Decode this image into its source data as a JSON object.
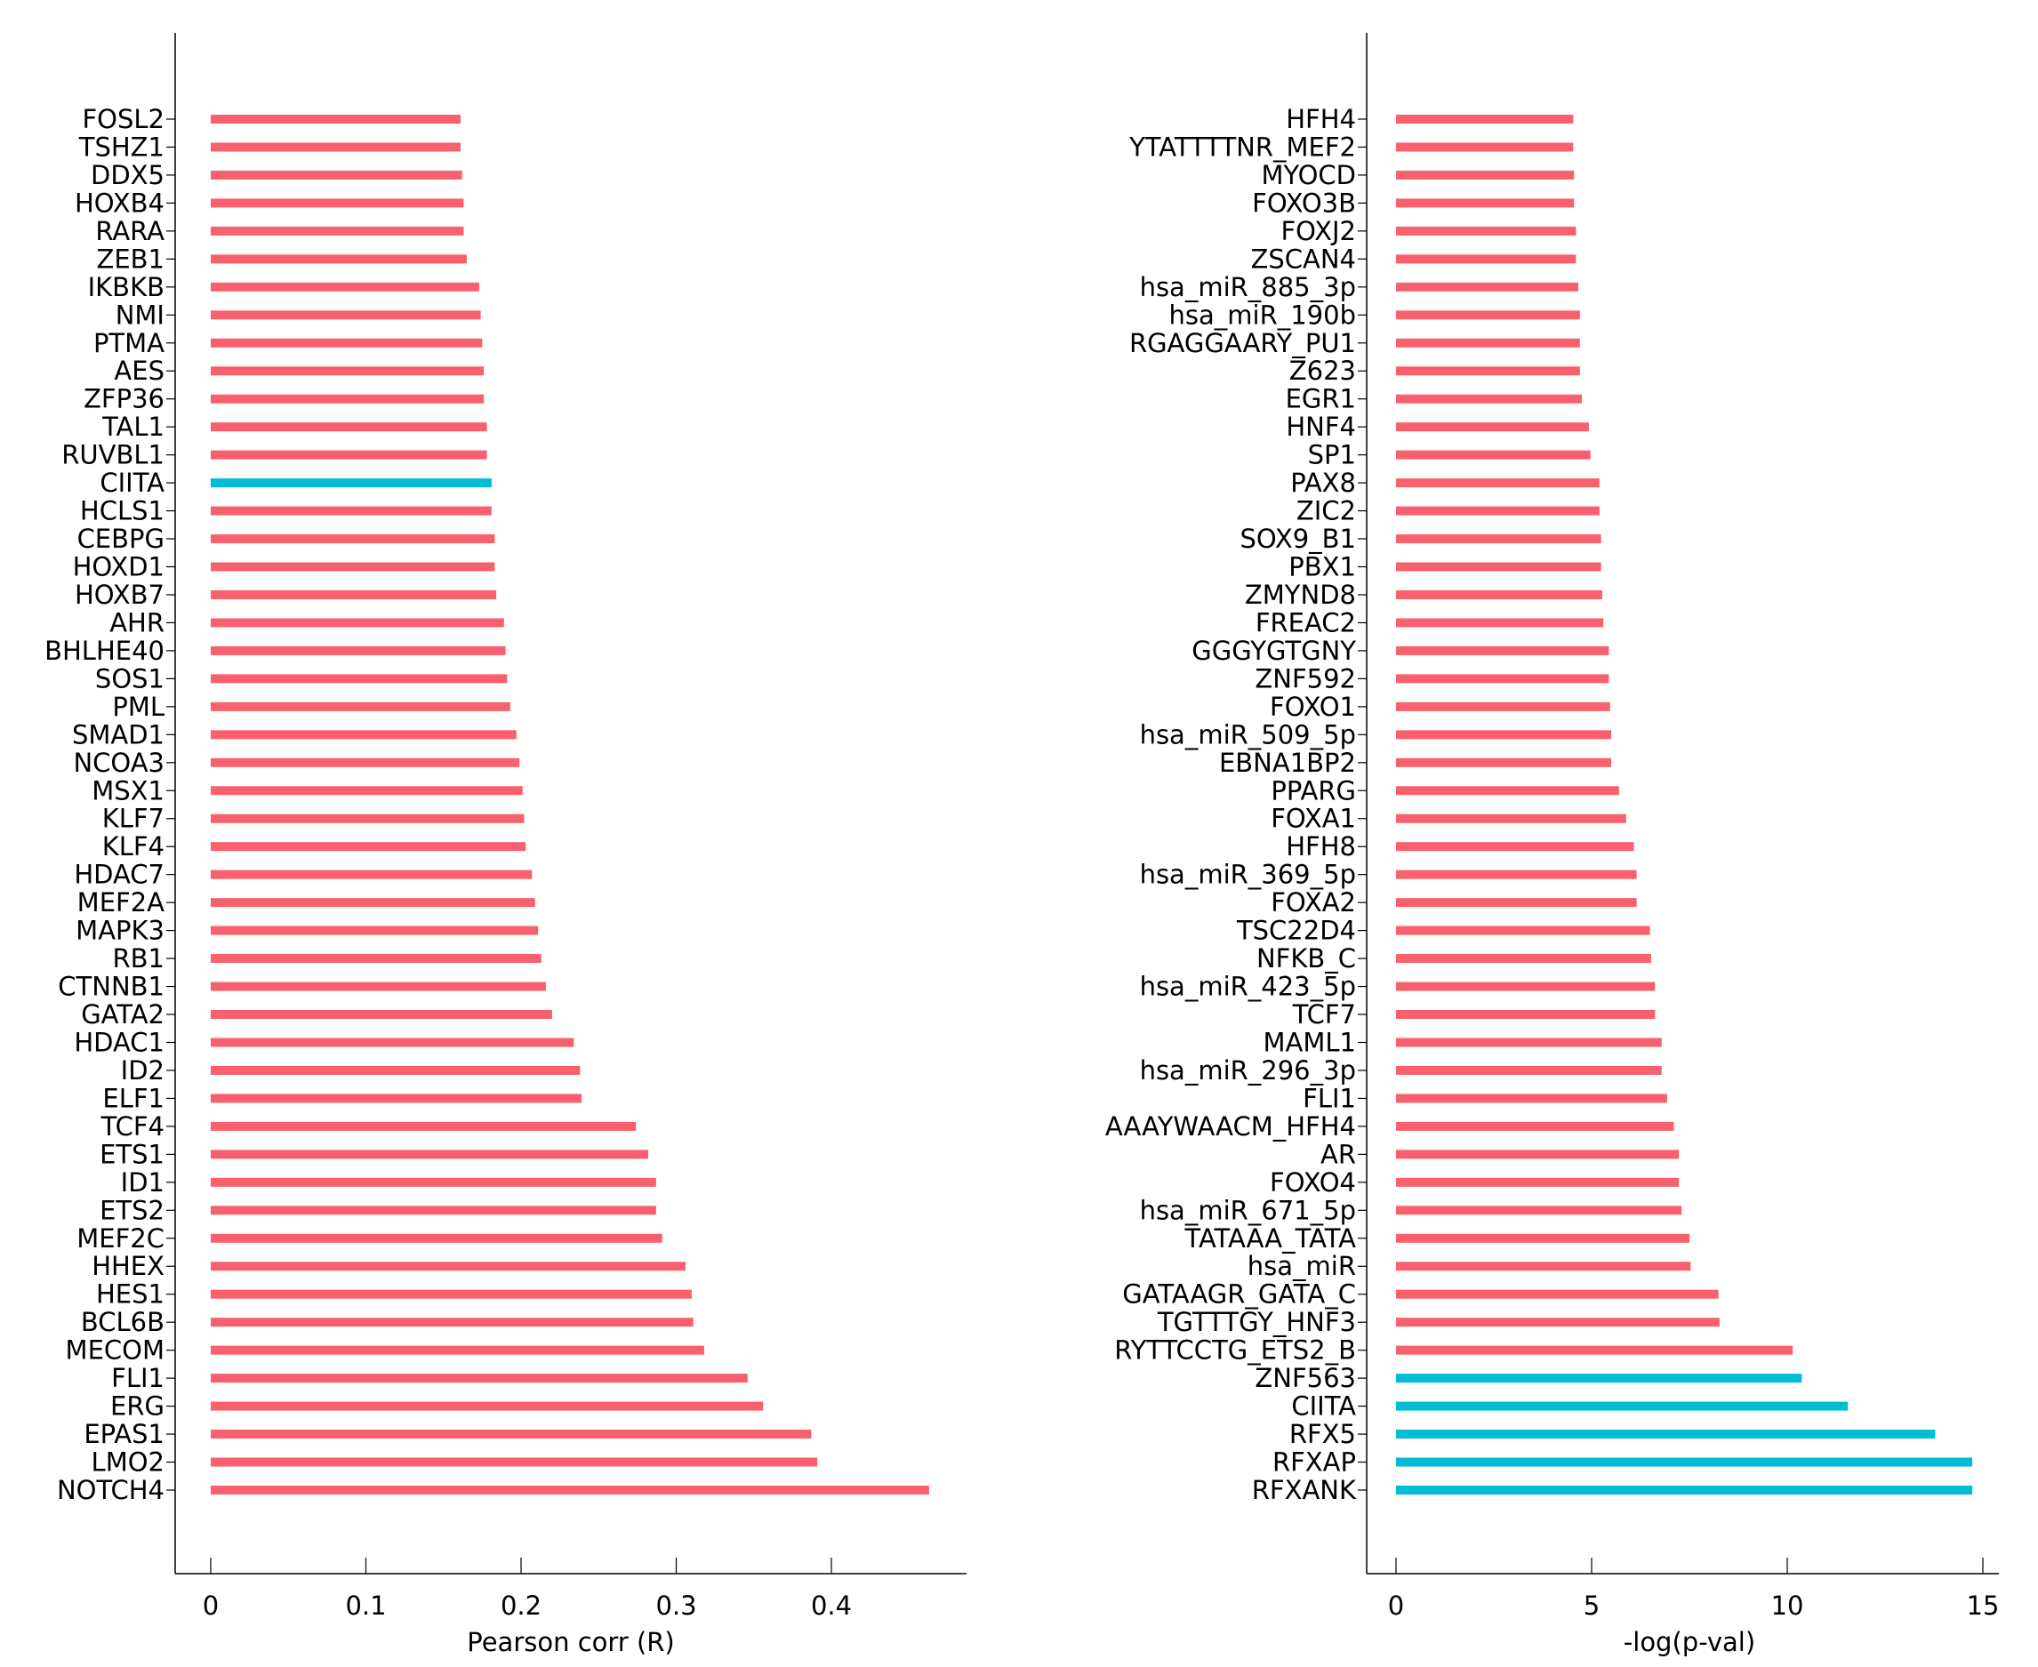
{
  "colors": {
    "default": "#f8606d",
    "highlight": "#00bcd4"
  },
  "chart_data": [
    {
      "type": "bar",
      "orientation": "horizontal",
      "xlabel": "Pearson corr (R)",
      "xlim": [
        -0.023,
        0.49
      ],
      "xticks": [
        0,
        0.1,
        0.2,
        0.3,
        0.4
      ],
      "xtick_labels": [
        "0",
        "0.1",
        "0.2",
        "0.3",
        "0.4"
      ],
      "categories": [
        "FOSL2",
        "TSHZ1",
        "DDX5",
        "HOXB4",
        "RARA",
        "ZEB1",
        "IKBKB",
        "NMI",
        "PTMA",
        "AES",
        "ZFP36",
        "TAL1",
        "RUVBL1",
        "CIITA",
        "HCLS1",
        "CEBPG",
        "HOXD1",
        "HOXB7",
        "AHR",
        "BHLHE40",
        "SOS1",
        "PML",
        "SMAD1",
        "NCOA3",
        "MSX1",
        "KLF7",
        "KLF4",
        "HDAC7",
        "MEF2A",
        "MAPK3",
        "RB1",
        "CTNNB1",
        "GATA2",
        "HDAC1",
        "ID2",
        "ELF1",
        "TCF4",
        "ETS1",
        "ID1",
        "ETS2",
        "MEF2C",
        "HHEX",
        "HES1",
        "BCL6B",
        "MECOM",
        "FLI1",
        "ERG",
        "EPAS1",
        "LMO2",
        "NOTCH4"
      ],
      "values": [
        0.161,
        0.161,
        0.162,
        0.163,
        0.163,
        0.165,
        0.173,
        0.174,
        0.175,
        0.176,
        0.176,
        0.178,
        0.178,
        0.181,
        0.181,
        0.183,
        0.183,
        0.184,
        0.189,
        0.19,
        0.191,
        0.193,
        0.197,
        0.199,
        0.201,
        0.202,
        0.203,
        0.207,
        0.209,
        0.211,
        0.213,
        0.216,
        0.22,
        0.234,
        0.238,
        0.239,
        0.274,
        0.282,
        0.287,
        0.287,
        0.291,
        0.306,
        0.31,
        0.311,
        0.318,
        0.346,
        0.356,
        0.387,
        0.391,
        0.463
      ],
      "highlighted": [
        "CIITA"
      ]
    },
    {
      "type": "bar",
      "orientation": "horizontal",
      "xlabel": "-log(p-val)",
      "xlim": [
        -0.75,
        15.4
      ],
      "xticks": [
        0,
        5,
        10,
        15
      ],
      "xtick_labels": [
        "0",
        "5",
        "10",
        "15"
      ],
      "categories": [
        "HFH4",
        "YTATTTTNR_MEF2",
        "MYOCD",
        "FOXO3B",
        "FOXJ2",
        "ZSCAN4",
        "hsa_miR_885_3p",
        "hsa_miR_190b",
        "RGAGGAARY_PU1",
        "Z623",
        "EGR1",
        "HNF4",
        "SP1",
        "PAX8",
        "ZIC2",
        "SOX9_B1",
        "PBX1",
        "ZMYND8",
        "FREAC2",
        "GGGYGTGNY",
        "ZNF592",
        "FOXO1",
        "hsa_miR_509_5p",
        "EBNA1BP2",
        "PPARG",
        "FOXA1",
        "HFH8",
        "hsa_miR_369_5p",
        "FOXA2",
        "TSC22D4",
        "NFKB_C",
        "hsa_miR_423_5p",
        "TCF7",
        "MAML1",
        "hsa_miR_296_3p",
        "FLI1",
        "AAAYWAACM_HFH4",
        "AR",
        "FOXO4",
        "hsa_miR_671_5p",
        "TATAAA_TATA",
        "hsa_miR",
        "GATAAGR_GATA_C",
        "TGTTTGY_HNF3",
        "RYTTCCTG_ETS2_B",
        "ZNF563",
        "CIITA",
        "RFX5",
        "RFXAP",
        "RFXANK"
      ],
      "values": [
        4.53,
        4.53,
        4.55,
        4.55,
        4.6,
        4.6,
        4.66,
        4.7,
        4.7,
        4.7,
        4.75,
        4.93,
        4.97,
        5.2,
        5.2,
        5.24,
        5.24,
        5.27,
        5.3,
        5.44,
        5.44,
        5.47,
        5.5,
        5.5,
        5.7,
        5.88,
        6.08,
        6.15,
        6.15,
        6.49,
        6.52,
        6.62,
        6.62,
        6.79,
        6.79,
        6.93,
        7.1,
        7.23,
        7.23,
        7.3,
        7.5,
        7.53,
        8.24,
        8.27,
        10.14,
        10.37,
        11.55,
        13.78,
        14.73,
        14.73
      ],
      "highlighted": [
        "ZNF563",
        "CIITA",
        "RFX5",
        "RFXAP",
        "RFXANK"
      ]
    }
  ]
}
